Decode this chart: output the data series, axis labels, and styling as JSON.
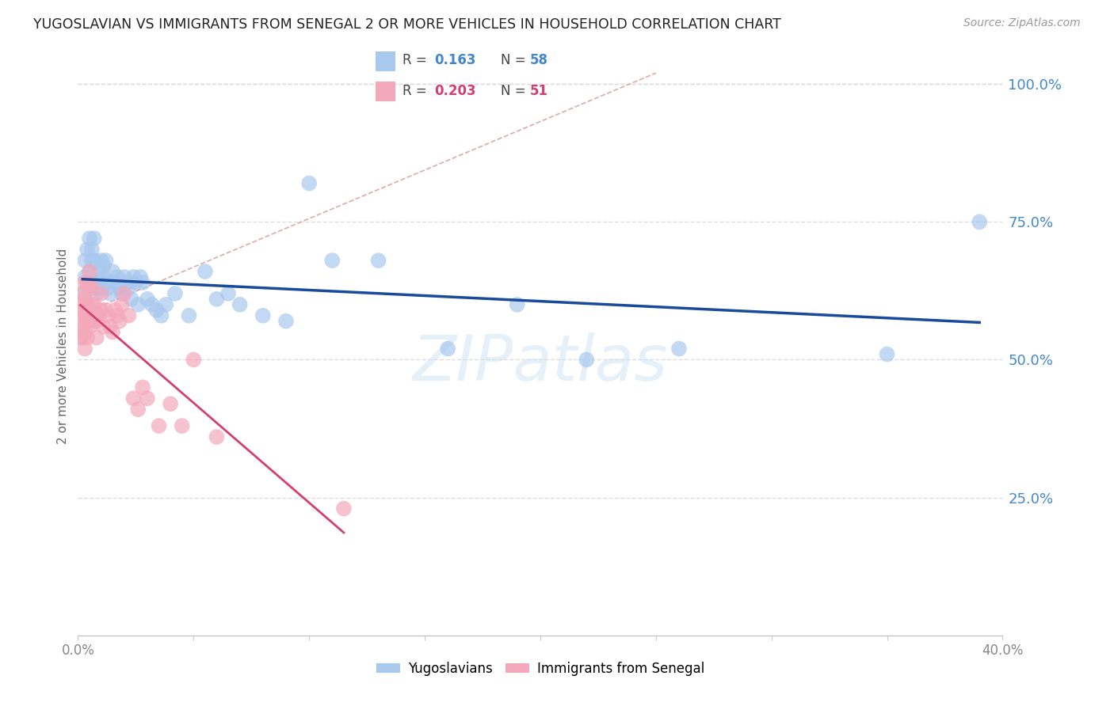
{
  "title": "YUGOSLAVIAN VS IMMIGRANTS FROM SENEGAL 2 OR MORE VEHICLES IN HOUSEHOLD CORRELATION CHART",
  "source": "Source: ZipAtlas.com",
  "ylabel": "2 or more Vehicles in Household",
  "ytick_labels": [
    "100.0%",
    "75.0%",
    "50.0%",
    "25.0%"
  ],
  "ytick_values": [
    1.0,
    0.75,
    0.5,
    0.25
  ],
  "xlim": [
    0.0,
    0.4
  ],
  "ylim": [
    0.0,
    1.05
  ],
  "xtick_positions": [
    0.0,
    0.05,
    0.1,
    0.15,
    0.2,
    0.25,
    0.3,
    0.35,
    0.4
  ],
  "xtick_labels": [
    "0.0%",
    "",
    "",
    "",
    "",
    "",
    "",
    "",
    "40.0%"
  ],
  "legend_blue_r": "0.163",
  "legend_blue_n": "58",
  "legend_pink_r": "0.203",
  "legend_pink_n": "51",
  "legend_label_blue": "Yugoslavians",
  "legend_label_pink": "Immigrants from Senegal",
  "blue_color": "#A8C8EE",
  "pink_color": "#F4A8BB",
  "blue_line_color": "#1A4A9A",
  "pink_line_color": "#D04070",
  "trendline_dash_color": "#DDAAAA",
  "background_color": "#FFFFFF",
  "grid_color": "#DDDDDD",
  "blue_scatter_x": [
    0.002,
    0.003,
    0.003,
    0.004,
    0.005,
    0.005,
    0.006,
    0.006,
    0.007,
    0.007,
    0.008,
    0.008,
    0.009,
    0.009,
    0.01,
    0.01,
    0.011,
    0.011,
    0.012,
    0.013,
    0.013,
    0.014,
    0.015,
    0.016,
    0.017,
    0.018,
    0.019,
    0.02,
    0.021,
    0.022,
    0.023,
    0.024,
    0.025,
    0.026,
    0.027,
    0.028,
    0.03,
    0.032,
    0.034,
    0.036,
    0.038,
    0.042,
    0.048,
    0.055,
    0.06,
    0.065,
    0.07,
    0.08,
    0.09,
    0.1,
    0.11,
    0.13,
    0.16,
    0.19,
    0.22,
    0.26,
    0.35,
    0.39
  ],
  "blue_scatter_y": [
    0.62,
    0.65,
    0.68,
    0.7,
    0.72,
    0.66,
    0.68,
    0.7,
    0.72,
    0.68,
    0.64,
    0.62,
    0.66,
    0.63,
    0.68,
    0.64,
    0.67,
    0.65,
    0.68,
    0.63,
    0.64,
    0.62,
    0.66,
    0.64,
    0.65,
    0.63,
    0.62,
    0.65,
    0.64,
    0.63,
    0.61,
    0.65,
    0.64,
    0.6,
    0.65,
    0.64,
    0.61,
    0.6,
    0.59,
    0.58,
    0.6,
    0.62,
    0.58,
    0.66,
    0.61,
    0.62,
    0.6,
    0.58,
    0.57,
    0.82,
    0.68,
    0.68,
    0.52,
    0.6,
    0.5,
    0.52,
    0.51,
    0.75
  ],
  "pink_scatter_x": [
    0.001,
    0.001,
    0.001,
    0.002,
    0.002,
    0.002,
    0.002,
    0.003,
    0.003,
    0.003,
    0.003,
    0.003,
    0.004,
    0.004,
    0.004,
    0.004,
    0.005,
    0.005,
    0.005,
    0.005,
    0.006,
    0.006,
    0.006,
    0.007,
    0.007,
    0.008,
    0.008,
    0.009,
    0.01,
    0.01,
    0.011,
    0.012,
    0.013,
    0.014,
    0.015,
    0.016,
    0.017,
    0.018,
    0.019,
    0.02,
    0.022,
    0.024,
    0.026,
    0.028,
    0.03,
    0.035,
    0.04,
    0.045,
    0.05,
    0.06,
    0.115
  ],
  "pink_scatter_y": [
    0.6,
    0.57,
    0.54,
    0.62,
    0.59,
    0.56,
    0.54,
    0.64,
    0.61,
    0.58,
    0.55,
    0.52,
    0.64,
    0.6,
    0.57,
    0.54,
    0.66,
    0.63,
    0.59,
    0.56,
    0.63,
    0.6,
    0.58,
    0.6,
    0.57,
    0.57,
    0.54,
    0.58,
    0.62,
    0.59,
    0.56,
    0.59,
    0.58,
    0.56,
    0.55,
    0.59,
    0.58,
    0.57,
    0.6,
    0.62,
    0.58,
    0.43,
    0.41,
    0.45,
    0.43,
    0.38,
    0.42,
    0.38,
    0.5,
    0.36,
    0.23
  ],
  "watermark": "ZIPatlas"
}
